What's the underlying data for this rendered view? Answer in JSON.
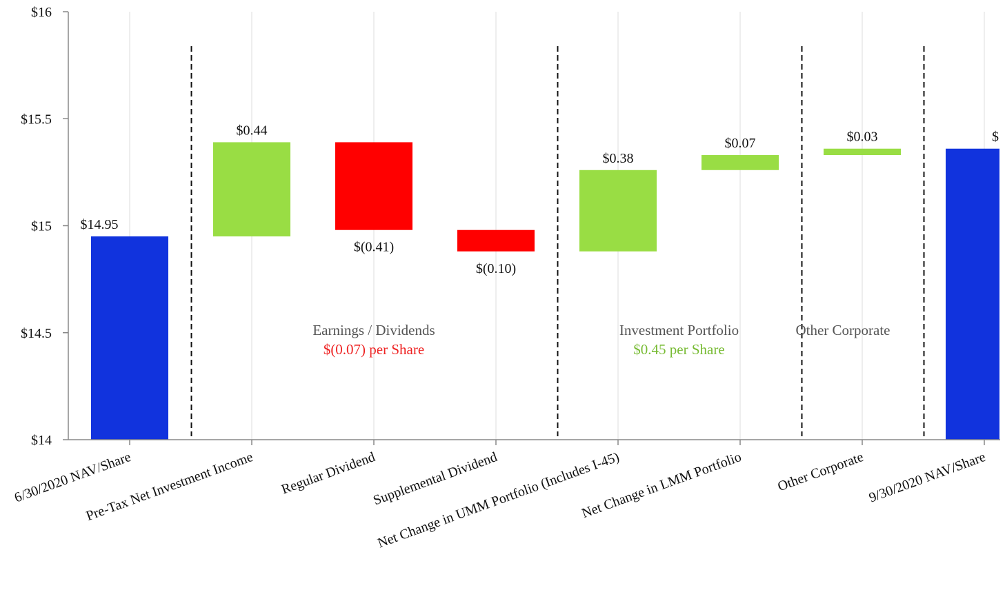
{
  "chart_data": {
    "type": "bar",
    "subtype": "waterfall",
    "title": "",
    "xlabel": "",
    "ylabel": "",
    "ylim": [
      14,
      16
    ],
    "y_ticks": [
      {
        "value": 14,
        "label": "$14"
      },
      {
        "value": 14.5,
        "label": "$14.5"
      },
      {
        "value": 15,
        "label": "$15"
      },
      {
        "value": 15.5,
        "label": "$15.5"
      },
      {
        "value": 16,
        "label": "$16"
      }
    ],
    "grid": {
      "vertical": true,
      "horizontal": false
    },
    "legend": "none",
    "categories": [
      "6/30/2020 NAV/Share",
      "Pre-Tax Net Investment Income",
      "Regular Dividend",
      "Supplemental Dividend",
      "Net Change in UMM Portfolio (Includes I-45)",
      "Net Change in LMM Portfolio",
      "Other Corporate",
      "9/30/2020 NAV/Share"
    ],
    "bars": [
      {
        "start": 14,
        "end": 14.95,
        "kind": "total",
        "label": "$14.95",
        "label_pos": "above"
      },
      {
        "start": 14.95,
        "end": 15.39,
        "kind": "increase",
        "label": "$0.44",
        "label_pos": "above"
      },
      {
        "start": 15.39,
        "end": 14.98,
        "kind": "decrease",
        "label": "$(0.41)",
        "label_pos": "below"
      },
      {
        "start": 14.98,
        "end": 14.88,
        "kind": "decrease",
        "label": "$(0.10)",
        "label_pos": "below"
      },
      {
        "start": 14.88,
        "end": 15.26,
        "kind": "increase",
        "label": "$0.38",
        "label_pos": "above"
      },
      {
        "start": 15.26,
        "end": 15.33,
        "kind": "increase",
        "label": "$0.07",
        "label_pos": "above"
      },
      {
        "start": 15.33,
        "end": 15.36,
        "kind": "increase",
        "label": "$0.03",
        "label_pos": "above"
      },
      {
        "start": 14,
        "end": 15.36,
        "kind": "total",
        "label": "$",
        "label_pos": "above"
      }
    ],
    "colors": {
      "total": "#1133dd",
      "increase": "#99dd44",
      "decrease": "#ff0000",
      "grid": "#dddddd",
      "axis": "#888888"
    },
    "separators_after_index": [
      0,
      3,
      5,
      6
    ],
    "groups": [
      {
        "title": "Earnings / Dividends",
        "subtitle": "$(0.07) per Share",
        "subtitle_color": "#ee2222",
        "span": [
          1,
          3
        ]
      },
      {
        "title": "Investment Portfolio",
        "subtitle": "$0.45 per Share",
        "subtitle_color": "#77bb33",
        "span": [
          4,
          5
        ]
      },
      {
        "title": "Other Corporate",
        "subtitle": "",
        "subtitle_color": "#555555",
        "span": [
          6,
          6
        ]
      }
    ]
  }
}
